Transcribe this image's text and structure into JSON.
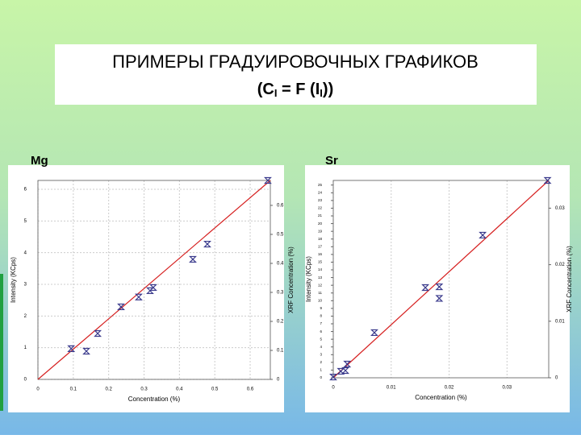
{
  "slide": {
    "title": "ПРИМЕРЫ ГРАДУИРОВОЧНЫХ ГРАФИКОВ",
    "formula": [
      "(C",
      "I",
      " = F (I",
      "I",
      "))"
    ]
  },
  "chart_data": [
    {
      "type": "scatter",
      "title": "Mg",
      "x_label": "Concentration (%)",
      "y_label": "Intensity (KCps)",
      "y2_label": "XRF Concentration (%)",
      "xlim": [
        0,
        0.657
      ],
      "xticks": [
        0,
        0.1,
        0.2,
        0.3,
        0.4,
        0.5,
        0.6
      ],
      "ylim": [
        0,
        6.28
      ],
      "yticks": [
        0,
        1,
        2,
        3,
        4,
        5,
        6
      ],
      "y2lim": [
        0,
        0.686
      ],
      "y2ticks": [
        0,
        0.1,
        0.2,
        0.3,
        0.4,
        0.5,
        0.6
      ],
      "grid": true,
      "color": "#3a3a8c",
      "fit_color": "#d62020",
      "x": [
        0.094,
        0.137,
        0.169,
        0.235,
        0.285,
        0.317,
        0.326,
        0.438,
        0.479,
        0.65
      ],
      "values": [
        0.97,
        0.89,
        1.45,
        2.29,
        2.6,
        2.8,
        2.9,
        3.79,
        4.27,
        6.28
      ],
      "fit": {
        "x": [
          0,
          0.657
        ],
        "y": [
          0,
          6.28
        ]
      }
    },
    {
      "type": "scatter",
      "title": "Sr",
      "x_label": "Concentration (%)",
      "y_label": "Intensity (KCps)",
      "y2_label": "XRF Concentration (%)",
      "xlim": [
        0,
        0.0372
      ],
      "xticks": [
        0,
        0.01,
        0.02,
        0.03
      ],
      "ylim": [
        0,
        25.6
      ],
      "yticks": [
        0,
        1,
        2,
        3,
        4,
        5,
        6,
        7,
        8,
        9,
        10,
        11,
        12,
        13,
        14,
        15,
        16,
        17,
        18,
        19,
        20,
        21,
        22,
        23,
        24,
        25
      ],
      "y2lim": [
        0,
        0.0349
      ],
      "y2ticks": [
        0,
        0.01,
        0.02,
        0.03
      ],
      "grid": true,
      "color": "#3a3a8c",
      "fit_color": "#d62020",
      "x": [
        0,
        0.0013,
        0.0021,
        0.0024,
        0.0071,
        0.0159,
        0.0183,
        0.0183,
        0.0258,
        0.037
      ],
      "values": [
        0.1,
        0.84,
        0.94,
        1.78,
        5.86,
        11.7,
        11.8,
        10.3,
        18.5,
        25.6
      ],
      "fit": {
        "x": [
          0,
          0.0372
        ],
        "y": [
          0,
          25.6
        ]
      }
    }
  ]
}
